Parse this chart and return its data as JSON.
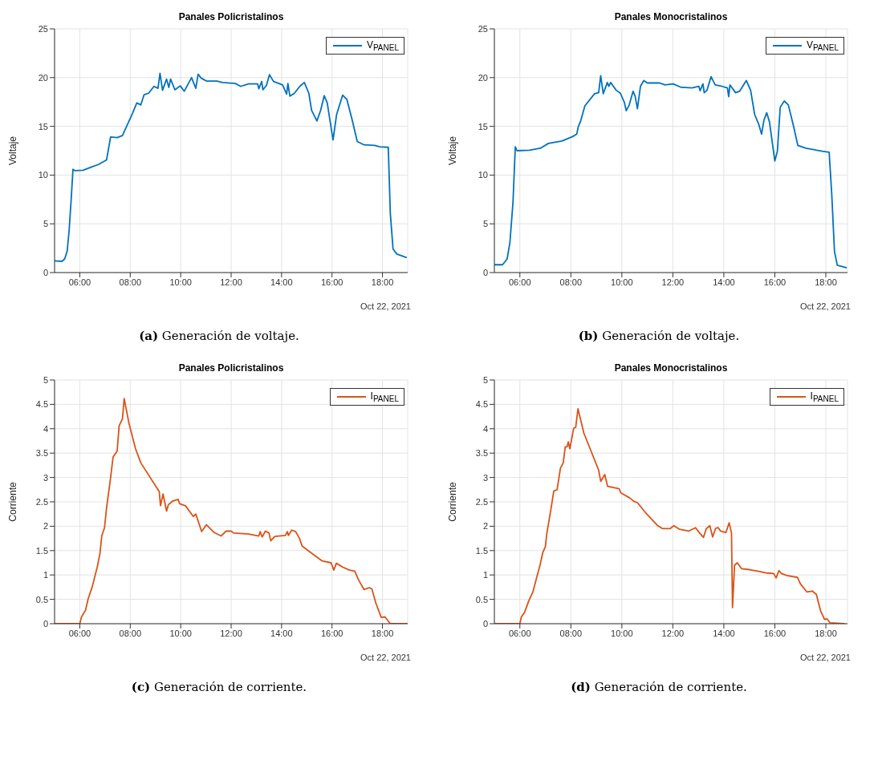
{
  "chart_data": [
    {
      "type": "line",
      "title": "Panales Policristalinos",
      "ylabel": "Voltaje",
      "xlim": [
        5,
        19
      ],
      "xticks": [
        {
          "value": 6,
          "label": "06:00"
        },
        {
          "value": 8,
          "label": "08:00"
        },
        {
          "value": 10,
          "label": "10:00"
        },
        {
          "value": 12,
          "label": "12:00"
        },
        {
          "value": 14,
          "label": "14:00"
        },
        {
          "value": 16,
          "label": "16:00"
        },
        {
          "value": 18,
          "label": "18:00"
        }
      ],
      "ylim": [
        0,
        25
      ],
      "yticks": [
        0,
        5,
        10,
        15,
        20,
        25
      ],
      "grid": true,
      "legend": "top right",
      "marker": "none",
      "line_style": "solid",
      "annotations": [
        "Oct 22, 2021",
        "(a) Generación de voltaje."
      ],
      "series": [
        {
          "name": "V$_{PANEL}$",
          "color": "#0072bd",
          "x": [
            5.0,
            5.29,
            5.4,
            5.5,
            5.58,
            5.66,
            5.73,
            5.81,
            6.13,
            6.44,
            6.75,
            7.06,
            7.22,
            7.48,
            7.69,
            7.9,
            8.1,
            8.26,
            8.42,
            8.55,
            8.73,
            8.94,
            9.1,
            9.18,
            9.28,
            9.44,
            9.53,
            9.6,
            9.77,
            9.98,
            10.14,
            10.43,
            10.6,
            10.69,
            10.81,
            11.02,
            11.44,
            11.65,
            12.17,
            12.38,
            12.69,
            13.05,
            13.1,
            13.21,
            13.26,
            13.4,
            13.52,
            13.68,
            14.04,
            14.2,
            14.25,
            14.33,
            14.51,
            14.72,
            14.9,
            15.08,
            15.19,
            15.4,
            15.55,
            15.69,
            15.81,
            16.04,
            16.18,
            16.42,
            16.59,
            16.8,
            17.0,
            17.27,
            17.69,
            17.9,
            18.23,
            18.31,
            18.42,
            18.57,
            18.94
          ],
          "values": [
            1.2,
            1.15,
            1.4,
            2.2,
            4.4,
            7.6,
            10.6,
            10.45,
            10.5,
            10.8,
            11.1,
            11.55,
            13.9,
            13.85,
            14.05,
            15.25,
            16.4,
            17.4,
            17.2,
            18.25,
            18.4,
            19.1,
            18.9,
            20.45,
            18.7,
            19.85,
            19.0,
            19.85,
            18.75,
            19.15,
            18.6,
            20.0,
            18.9,
            20.35,
            19.95,
            19.65,
            19.65,
            19.5,
            19.4,
            19.1,
            19.35,
            19.35,
            18.85,
            19.6,
            18.75,
            19.2,
            20.3,
            19.6,
            19.25,
            18.3,
            19.4,
            18.1,
            18.4,
            19.1,
            19.5,
            18.4,
            16.65,
            15.55,
            16.65,
            18.15,
            17.4,
            13.6,
            16.2,
            18.2,
            17.75,
            15.65,
            13.45,
            13.1,
            13.05,
            12.9,
            12.85,
            6.1,
            2.4,
            1.9,
            1.55
          ]
        }
      ]
    },
    {
      "type": "line",
      "title": "Panales Monocristalinos",
      "ylabel": "Voltaje",
      "xlim": [
        5,
        18.85
      ],
      "xticks": [
        {
          "value": 6,
          "label": "06:00"
        },
        {
          "value": 8,
          "label": "08:00"
        },
        {
          "value": 10,
          "label": "10:00"
        },
        {
          "value": 12,
          "label": "12:00"
        },
        {
          "value": 14,
          "label": "14:00"
        },
        {
          "value": 16,
          "label": "16:00"
        },
        {
          "value": 18,
          "label": "18:00"
        }
      ],
      "ylim": [
        0,
        25
      ],
      "yticks": [
        0,
        5,
        10,
        15,
        20,
        25
      ],
      "grid": true,
      "legend": "top right",
      "marker": "none",
      "line_style": "solid",
      "annotations": [
        "Oct 22, 2021",
        "(b) Generación de voltaje."
      ],
      "series": [
        {
          "name": "V$_{PANEL}$",
          "color": "#0072bd",
          "x": [
            5.0,
            5.32,
            5.5,
            5.61,
            5.73,
            5.82,
            5.89,
            6.37,
            6.8,
            7.12,
            7.65,
            8.07,
            8.23,
            8.29,
            8.39,
            8.55,
            8.93,
            9.09,
            9.17,
            9.27,
            9.43,
            9.49,
            9.56,
            9.78,
            9.94,
            10.1,
            10.17,
            10.29,
            10.44,
            10.52,
            10.61,
            10.73,
            10.86,
            11.0,
            11.48,
            11.69,
            12.01,
            12.33,
            12.76,
            13.02,
            13.07,
            13.18,
            13.23,
            13.34,
            13.5,
            13.66,
            13.93,
            14.14,
            14.19,
            14.24,
            14.46,
            14.62,
            14.88,
            15.05,
            15.21,
            15.37,
            15.48,
            15.57,
            15.68,
            15.79,
            16.0,
            16.1,
            16.21,
            16.37,
            16.53,
            16.74,
            16.9,
            17.22,
            17.86,
            18.13,
            18.23,
            18.34,
            18.45,
            18.8
          ],
          "values": [
            0.8,
            0.8,
            1.4,
            3.1,
            7.2,
            12.9,
            12.5,
            12.55,
            12.75,
            13.25,
            13.5,
            13.95,
            14.2,
            14.95,
            15.6,
            17.1,
            18.35,
            18.45,
            20.2,
            18.35,
            19.5,
            19.1,
            19.5,
            18.7,
            18.4,
            17.45,
            16.6,
            17.2,
            18.6,
            18.1,
            16.8,
            19.1,
            19.7,
            19.45,
            19.45,
            19.25,
            19.35,
            19.0,
            18.95,
            19.1,
            18.65,
            19.35,
            18.45,
            18.7,
            20.1,
            19.25,
            19.1,
            18.95,
            18.05,
            19.25,
            18.45,
            18.6,
            19.7,
            18.7,
            16.2,
            15.2,
            14.2,
            15.6,
            16.4,
            15.45,
            11.45,
            12.45,
            16.95,
            17.6,
            17.2,
            14.95,
            13.05,
            12.75,
            12.45,
            12.35,
            8.15,
            2.15,
            0.75,
            0.5
          ]
        }
      ]
    },
    {
      "type": "line",
      "title": "Panales Policristalinos",
      "ylabel": "Corriente",
      "xlim": [
        5,
        19
      ],
      "xticks": [
        {
          "value": 6,
          "label": "06:00"
        },
        {
          "value": 8,
          "label": "08:00"
        },
        {
          "value": 10,
          "label": "10:00"
        },
        {
          "value": 12,
          "label": "12:00"
        },
        {
          "value": 14,
          "label": "14:00"
        },
        {
          "value": 16,
          "label": "16:00"
        },
        {
          "value": 18,
          "label": "18:00"
        }
      ],
      "ylim": [
        0,
        5
      ],
      "yticks": [
        0,
        0.5,
        1,
        1.5,
        2,
        2.5,
        3,
        3.5,
        4,
        4.5,
        5
      ],
      "grid": true,
      "legend": "top right",
      "marker": "none",
      "line_style": "solid",
      "annotations": [
        "Oct 22, 2021",
        "(c) Generación de corriente."
      ],
      "series": [
        {
          "name": "I$_{PANEL}$",
          "color": "#d95319",
          "x": [
            5.0,
            6.0,
            6.07,
            6.23,
            6.33,
            6.49,
            6.7,
            6.8,
            6.87,
            6.98,
            7.06,
            7.22,
            7.32,
            7.48,
            7.56,
            7.69,
            7.76,
            7.95,
            8.21,
            8.42,
            9.15,
            9.2,
            9.3,
            9.44,
            9.51,
            9.69,
            9.9,
            9.96,
            10.19,
            10.5,
            10.6,
            10.83,
            11.02,
            11.33,
            11.6,
            11.8,
            12.0,
            12.1,
            12.69,
            13.1,
            13.15,
            13.23,
            13.36,
            13.5,
            13.57,
            13.73,
            14.15,
            14.23,
            14.27,
            14.4,
            14.56,
            14.71,
            14.82,
            15.08,
            15.6,
            15.96,
            16.07,
            16.17,
            16.43,
            16.69,
            16.9,
            17.06,
            17.27,
            17.48,
            17.58,
            17.74,
            17.95,
            18.1,
            18.31,
            18.97
          ],
          "values": [
            0,
            0,
            0.14,
            0.28,
            0.51,
            0.75,
            1.18,
            1.44,
            1.8,
            1.97,
            2.37,
            2.99,
            3.42,
            3.54,
            4.06,
            4.2,
            4.62,
            4.11,
            3.59,
            3.3,
            2.71,
            2.42,
            2.66,
            2.31,
            2.44,
            2.52,
            2.55,
            2.46,
            2.42,
            2.2,
            2.25,
            1.89,
            2.03,
            1.87,
            1.8,
            1.9,
            1.9,
            1.86,
            1.84,
            1.8,
            1.89,
            1.78,
            1.9,
            1.86,
            1.7,
            1.79,
            1.81,
            1.89,
            1.81,
            1.92,
            1.89,
            1.75,
            1.59,
            1.49,
            1.29,
            1.25,
            1.1,
            1.24,
            1.16,
            1.1,
            1.08,
            0.89,
            0.7,
            0.74,
            0.71,
            0.42,
            0.13,
            0.14,
            0,
            0
          ]
        }
      ]
    },
    {
      "type": "line",
      "title": "Panales Monocristalinos",
      "ylabel": "Corriente",
      "xlim": [
        5,
        18.85
      ],
      "xticks": [
        {
          "value": 6,
          "label": "06:00"
        },
        {
          "value": 8,
          "label": "08:00"
        },
        {
          "value": 10,
          "label": "10:00"
        },
        {
          "value": 12,
          "label": "12:00"
        },
        {
          "value": 14,
          "label": "14:00"
        },
        {
          "value": 16,
          "label": "16:00"
        },
        {
          "value": 18,
          "label": "18:00"
        }
      ],
      "ylim": [
        0,
        5
      ],
      "yticks": [
        0,
        0.5,
        1,
        1.5,
        2,
        2.5,
        3,
        3.5,
        4,
        4.5,
        5
      ],
      "grid": true,
      "legend": "top right",
      "marker": "none",
      "line_style": "solid",
      "annotations": [
        "Oct 22, 2021",
        "(d) Generación de corriente."
      ],
      "series": [
        {
          "name": "I$_{PANEL}$",
          "color": "#d95319",
          "x": [
            5.0,
            6.0,
            6.06,
            6.19,
            6.35,
            6.51,
            6.66,
            6.79,
            6.9,
            7.0,
            7.06,
            7.19,
            7.33,
            7.46,
            7.59,
            7.7,
            7.78,
            7.85,
            7.9,
            7.96,
            8.11,
            8.19,
            8.28,
            8.51,
            9.09,
            9.17,
            9.33,
            9.44,
            9.89,
            9.97,
            10.31,
            10.47,
            10.62,
            10.94,
            11.41,
            11.6,
            11.89,
            12.04,
            12.25,
            12.62,
            12.89,
            13.05,
            13.2,
            13.31,
            13.45,
            13.56,
            13.68,
            13.78,
            13.87,
            14.08,
            14.21,
            14.3,
            14.34,
            14.42,
            14.53,
            14.69,
            15.0,
            15.32,
            15.69,
            15.95,
            16.05,
            16.16,
            16.26,
            16.47,
            16.89,
            17.0,
            17.26,
            17.47,
            17.63,
            17.79,
            17.95,
            18.05,
            18.16,
            18.72
          ],
          "values": [
            0,
            0,
            0.14,
            0.24,
            0.47,
            0.65,
            0.95,
            1.2,
            1.46,
            1.58,
            1.86,
            2.26,
            2.72,
            2.75,
            3.19,
            3.3,
            3.63,
            3.63,
            3.73,
            3.59,
            4.01,
            4.03,
            4.41,
            3.91,
            3.15,
            2.92,
            3.06,
            2.82,
            2.77,
            2.68,
            2.58,
            2.51,
            2.48,
            2.27,
            2.01,
            1.95,
            1.95,
            2.01,
            1.94,
            1.9,
            1.97,
            1.86,
            1.77,
            1.95,
            2.01,
            1.78,
            1.96,
            1.97,
            1.9,
            1.87,
            2.07,
            1.86,
            0.33,
            1.2,
            1.25,
            1.13,
            1.11,
            1.08,
            1.04,
            1.03,
            0.94,
            1.09,
            1.03,
            0.99,
            0.95,
            0.82,
            0.65,
            0.67,
            0.6,
            0.27,
            0.09,
            0.1,
            0.02,
            0
          ]
        }
      ]
    }
  ]
}
